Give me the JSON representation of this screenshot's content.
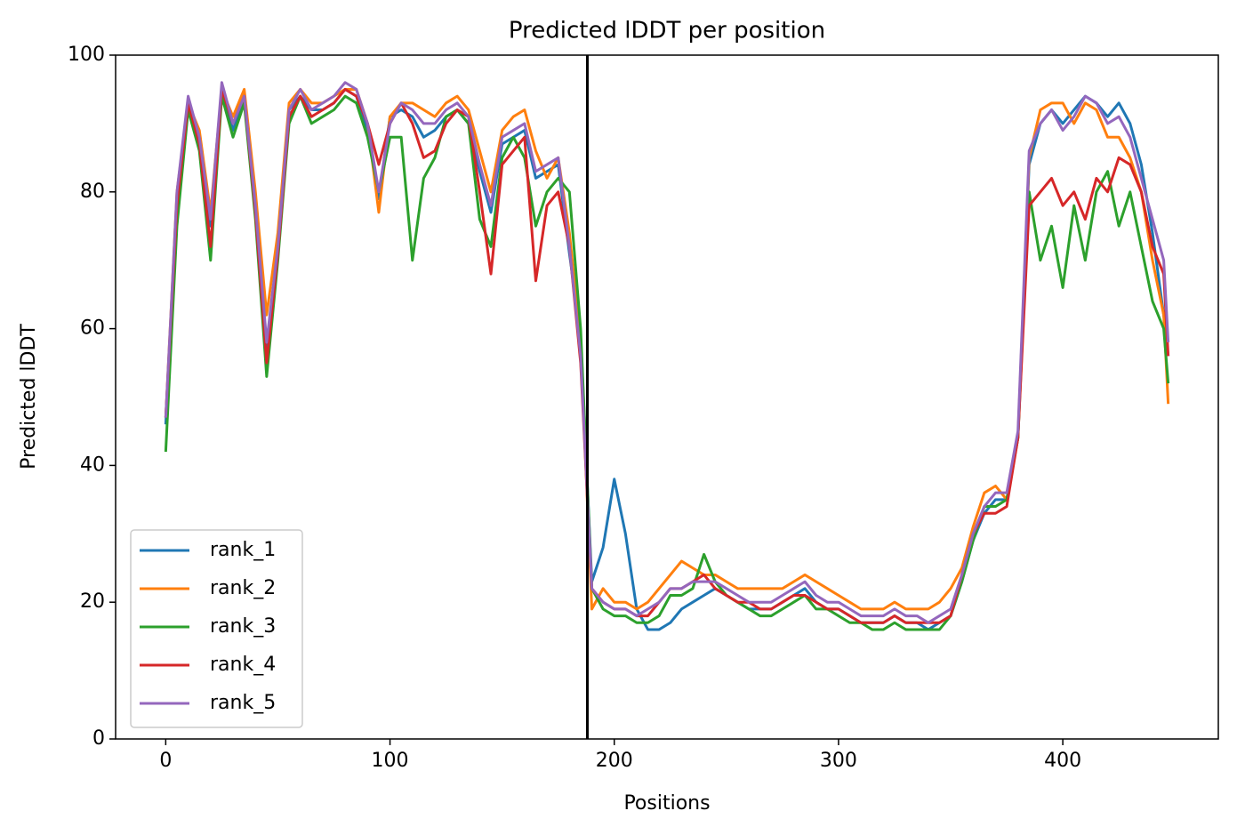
{
  "chart_data": {
    "type": "line",
    "title": "Predicted lDDT per position",
    "xlabel": "Positions",
    "ylabel": "Predicted lDDT",
    "xlim": [
      -22.35,
      469.35
    ],
    "xticks": [
      0,
      100,
      200,
      300,
      400
    ],
    "ylim": [
      0,
      100
    ],
    "yticks": [
      0,
      20,
      40,
      60,
      80,
      100
    ],
    "legend": "lower left",
    "vline": 188,
    "vline_color": "#000000",
    "x": [
      0,
      5,
      10,
      15,
      20,
      25,
      30,
      35,
      40,
      45,
      50,
      55,
      60,
      65,
      70,
      75,
      80,
      85,
      90,
      95,
      100,
      105,
      110,
      115,
      120,
      125,
      130,
      135,
      140,
      145,
      150,
      155,
      160,
      165,
      170,
      175,
      180,
      185,
      190,
      195,
      200,
      205,
      210,
      215,
      220,
      225,
      230,
      235,
      240,
      245,
      250,
      255,
      260,
      265,
      270,
      275,
      280,
      285,
      290,
      295,
      300,
      305,
      310,
      315,
      320,
      325,
      330,
      335,
      340,
      345,
      350,
      355,
      360,
      365,
      370,
      375,
      380,
      385,
      390,
      395,
      400,
      405,
      410,
      415,
      420,
      425,
      430,
      435,
      440,
      445,
      447
    ],
    "series": [
      {
        "name": "rank_1",
        "color": "#1f77b4",
        "values": [
          46,
          79,
          93,
          87,
          75,
          95,
          89,
          94,
          77,
          57,
          71,
          92,
          94,
          92,
          92,
          93,
          95,
          94,
          89,
          79,
          91,
          92,
          91,
          88,
          89,
          91,
          92,
          90,
          83,
          77,
          87,
          88,
          89,
          82,
          83,
          84,
          71,
          59,
          23,
          28,
          38,
          30,
          19,
          16,
          16,
          17,
          19,
          20,
          21,
          22,
          21,
          20,
          19,
          19,
          19,
          20,
          21,
          22,
          20,
          19,
          19,
          18,
          17,
          17,
          17,
          18,
          17,
          17,
          16,
          17,
          18,
          23,
          29,
          33,
          35,
          35,
          44,
          84,
          90,
          92,
          90,
          92,
          94,
          93,
          91,
          93,
          90,
          84,
          74,
          62,
          56
        ]
      },
      {
        "name": "rank_2",
        "color": "#ff7f0e",
        "values": [
          47,
          80,
          93,
          89,
          77,
          95,
          91,
          95,
          80,
          62,
          74,
          93,
          95,
          93,
          93,
          94,
          95,
          95,
          90,
          77,
          91,
          93,
          93,
          92,
          91,
          93,
          94,
          92,
          86,
          80,
          89,
          91,
          92,
          86,
          82,
          85,
          74,
          58,
          19,
          22,
          20,
          20,
          19,
          20,
          22,
          24,
          26,
          25,
          24,
          24,
          23,
          22,
          22,
          22,
          22,
          22,
          23,
          24,
          23,
          22,
          21,
          20,
          19,
          19,
          19,
          20,
          19,
          19,
          19,
          20,
          22,
          25,
          31,
          36,
          37,
          35,
          44,
          85,
          92,
          93,
          93,
          90,
          93,
          92,
          88,
          88,
          85,
          80,
          70,
          62,
          49
        ]
      },
      {
        "name": "rank_3",
        "color": "#2ca02c",
        "values": [
          42,
          75,
          92,
          86,
          70,
          94,
          88,
          93,
          76,
          53,
          70,
          90,
          94,
          90,
          91,
          92,
          94,
          93,
          88,
          80,
          88,
          88,
          70,
          82,
          85,
          91,
          92,
          90,
          76,
          72,
          85,
          88,
          85,
          75,
          80,
          82,
          80,
          60,
          22,
          19,
          18,
          18,
          17,
          17,
          18,
          21,
          21,
          22,
          27,
          23,
          21,
          20,
          19,
          18,
          18,
          19,
          20,
          21,
          19,
          19,
          18,
          17,
          17,
          16,
          16,
          17,
          16,
          16,
          16,
          16,
          18,
          23,
          29,
          34,
          34,
          35,
          44,
          80,
          70,
          75,
          66,
          78,
          70,
          80,
          83,
          75,
          80,
          72,
          64,
          60,
          52
        ]
      },
      {
        "name": "rank_4",
        "color": "#d62728",
        "values": [
          47,
          78,
          93,
          87,
          72,
          95,
          90,
          94,
          77,
          55,
          71,
          91,
          94,
          91,
          92,
          93,
          95,
          94,
          90,
          84,
          90,
          93,
          90,
          85,
          86,
          90,
          92,
          91,
          80,
          68,
          84,
          86,
          88,
          67,
          78,
          80,
          72,
          55,
          22,
          20,
          19,
          19,
          18,
          18,
          20,
          22,
          22,
          23,
          24,
          22,
          21,
          20,
          20,
          19,
          19,
          20,
          21,
          21,
          20,
          19,
          19,
          18,
          17,
          17,
          17,
          18,
          17,
          17,
          17,
          17,
          18,
          24,
          30,
          33,
          33,
          34,
          44,
          78,
          80,
          82,
          78,
          80,
          76,
          82,
          80,
          85,
          84,
          80,
          72,
          68,
          56
        ]
      },
      {
        "name": "rank_5",
        "color": "#9467bd",
        "values": [
          47,
          80,
          94,
          88,
          76,
          96,
          90,
          94,
          78,
          58,
          72,
          92,
          95,
          92,
          93,
          94,
          96,
          95,
          90,
          80,
          90,
          93,
          92,
          90,
          90,
          92,
          93,
          91,
          84,
          78,
          88,
          89,
          90,
          83,
          84,
          85,
          72,
          56,
          22,
          20,
          19,
          19,
          18,
          19,
          20,
          22,
          22,
          23,
          23,
          23,
          22,
          21,
          20,
          20,
          20,
          21,
          22,
          23,
          21,
          20,
          20,
          19,
          18,
          18,
          18,
          19,
          18,
          18,
          17,
          18,
          19,
          24,
          30,
          34,
          36,
          36,
          45,
          86,
          90,
          92,
          89,
          91,
          94,
          93,
          90,
          91,
          88,
          82,
          76,
          70,
          58
        ]
      }
    ]
  }
}
